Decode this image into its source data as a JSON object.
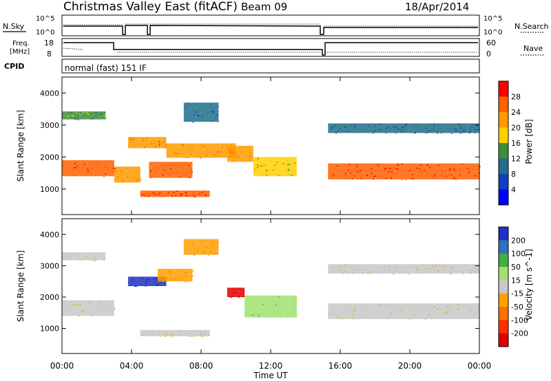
{
  "header": {
    "station": "Christmas Valley East (fitACF)",
    "beam": "Beam 09",
    "date": "18/Apr/2014"
  },
  "panels": {
    "nsky_label": "N.Sky",
    "nsearch_label": "N.Search",
    "noise_ticks_left": [
      "10^5",
      "10^0"
    ],
    "noise_ticks_right": [
      "10^5",
      "10^0"
    ],
    "freq_label_1": "Freq.",
    "freq_label_2": "[MHz]",
    "freq_ticks": [
      "18",
      "8"
    ],
    "nave_label": "Nave",
    "nave_ticks": [
      "60",
      "0"
    ],
    "cpid_label": "CPID",
    "cpid_value": "normal (fast) 151 IF"
  },
  "axes": {
    "ylabel": "Slant Range [km]",
    "yticks": [
      "4000",
      "3000",
      "2000",
      "1000"
    ],
    "xlabel": "Time UT",
    "xticks": [
      "00:00",
      "04:00",
      "08:00",
      "12:00",
      "16:00",
      "20:00",
      "00:00"
    ]
  },
  "power_colorbar": {
    "label": "Power [dB]",
    "ticks": [
      "28",
      "24",
      "20",
      "16",
      "12",
      "8",
      "4"
    ],
    "colors": [
      "#ff0000",
      "#ff6000",
      "#ff9a00",
      "#ffd000",
      "#3a8f3a",
      "#1f6e8c",
      "#1040c0",
      "#0000ff"
    ]
  },
  "velocity_colorbar": {
    "label": "Velocity [m s^-1]",
    "ticks": [
      "200",
      "100",
      "50",
      "15",
      "-15",
      "-50",
      "-100",
      "-200"
    ],
    "colors": [
      "#2030c0",
      "#3070c0",
      "#40b040",
      "#a0e070",
      "#c8c8c8",
      "#ffa000",
      "#ff7000",
      "#ff3000",
      "#e00000"
    ]
  },
  "chart_data": [
    {
      "type": "heatmap",
      "title": "Power",
      "xlabel": "Time UT",
      "ylabel": "Slant Range [km]",
      "xlim": [
        0,
        24
      ],
      "ylim": [
        200,
        4500
      ],
      "colorbar_label": "Power [dB]",
      "colorbar_range": [
        0,
        30
      ],
      "echo_bands": [
        {
          "t_start": 0.0,
          "t_end": 3.0,
          "range_center": 1650,
          "range_width": 500,
          "power_db": 24
        },
        {
          "t_start": 0.0,
          "t_end": 2.5,
          "range_center": 3300,
          "range_width": 250,
          "power_db": 12
        },
        {
          "t_start": 3.0,
          "t_end": 4.5,
          "range_center": 1450,
          "range_width": 500,
          "power_db": 22
        },
        {
          "t_start": 3.8,
          "t_end": 6.0,
          "range_center": 2450,
          "range_width": 350,
          "power_db": 22
        },
        {
          "t_start": 5.0,
          "t_end": 7.5,
          "range_center": 1600,
          "range_width": 500,
          "power_db": 24
        },
        {
          "t_start": 6.0,
          "t_end": 10.0,
          "range_center": 2200,
          "range_width": 450,
          "power_db": 20
        },
        {
          "t_start": 4.5,
          "t_end": 8.5,
          "range_center": 850,
          "range_width": 200,
          "power_db": 26
        },
        {
          "t_start": 7.0,
          "t_end": 9.0,
          "range_center": 3400,
          "range_width": 600,
          "power_db": 8
        },
        {
          "t_start": 9.5,
          "t_end": 11.0,
          "range_center": 2100,
          "range_width": 500,
          "power_db": 20
        },
        {
          "t_start": 11.0,
          "t_end": 13.5,
          "range_center": 1700,
          "range_width": 600,
          "power_db": 18
        },
        {
          "t_start": 15.3,
          "t_end": 24.0,
          "range_center": 1550,
          "range_width": 500,
          "power_db": 26
        },
        {
          "t_start": 15.3,
          "t_end": 24.0,
          "range_center": 2900,
          "range_width": 300,
          "power_db": 10
        }
      ]
    },
    {
      "type": "heatmap",
      "title": "Velocity",
      "xlabel": "Time UT",
      "ylabel": "Slant Range [km]",
      "xlim": [
        0,
        24
      ],
      "ylim": [
        200,
        4500
      ],
      "colorbar_label": "Velocity [m s^-1]",
      "colorbar_range": [
        -200,
        200
      ],
      "echo_bands": [
        {
          "t_start": 0.0,
          "t_end": 3.0,
          "range_center": 1650,
          "range_width": 500,
          "velocity": 0
        },
        {
          "t_start": 0.0,
          "t_end": 2.5,
          "range_center": 3300,
          "range_width": 250,
          "velocity": 0
        },
        {
          "t_start": 3.8,
          "t_end": 6.0,
          "range_center": 2500,
          "range_width": 300,
          "velocity": 200
        },
        {
          "t_start": 5.5,
          "t_end": 7.5,
          "range_center": 2700,
          "range_width": 400,
          "velocity": -50
        },
        {
          "t_start": 7.0,
          "t_end": 9.0,
          "range_center": 3600,
          "range_width": 500,
          "velocity": -60
        },
        {
          "t_start": 4.5,
          "t_end": 8.5,
          "range_center": 850,
          "range_width": 200,
          "velocity": 0
        },
        {
          "t_start": 9.5,
          "t_end": 10.5,
          "range_center": 2150,
          "range_width": 300,
          "velocity": -200
        },
        {
          "t_start": 10.5,
          "t_end": 13.5,
          "range_center": 1700,
          "range_width": 700,
          "velocity": 50
        },
        {
          "t_start": 15.3,
          "t_end": 24.0,
          "range_center": 1550,
          "range_width": 500,
          "velocity": 0
        },
        {
          "t_start": 15.3,
          "t_end": 24.0,
          "range_center": 2900,
          "range_width": 300,
          "velocity": 0
        }
      ]
    }
  ]
}
